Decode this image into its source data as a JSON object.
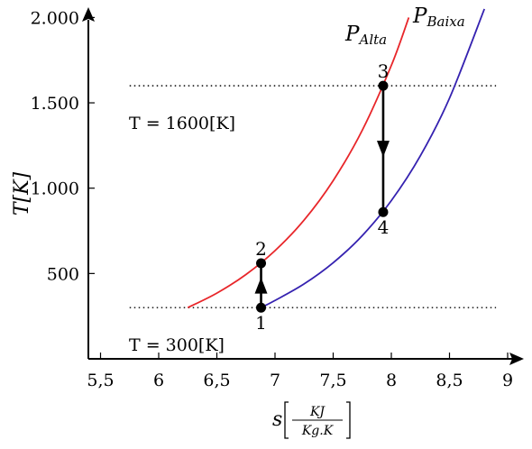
{
  "chart_data": {
    "type": "line",
    "xlabel": "s",
    "xlabel_unit_num": "KJ",
    "xlabel_unit_den": "Kg.K",
    "ylabel": "T[K]",
    "xlim": [
      5.5,
      9
    ],
    "ylim": [
      0,
      2000
    ],
    "x_ticks": [
      {
        "value": 5.5,
        "label": "5,5"
      },
      {
        "value": 6,
        "label": "6"
      },
      {
        "value": 6.5,
        "label": "6,5"
      },
      {
        "value": 7,
        "label": "7"
      },
      {
        "value": 7.5,
        "label": "7,5"
      },
      {
        "value": 8,
        "label": "8"
      },
      {
        "value": 8.5,
        "label": "8,5"
      },
      {
        "value": 9,
        "label": "9"
      }
    ],
    "y_ticks": [
      {
        "value": 500,
        "label": "500"
      },
      {
        "value": 1000,
        "label": "1.000"
      },
      {
        "value": 1500,
        "label": "1.500"
      },
      {
        "value": 2000,
        "label": "2.000"
      }
    ],
    "series": [
      {
        "name_base": "P",
        "name_sub": "Alta",
        "color": "#e8262a",
        "x": [
          6.25,
          6.5,
          6.75,
          7.0,
          7.25,
          7.5,
          7.75,
          8.0,
          8.15
        ],
        "y": [
          300,
          385,
          494,
          634,
          813,
          1044,
          1339,
          1719,
          2000
        ]
      },
      {
        "name_base": "P",
        "name_sub": "Baixa",
        "color": "#3522b0",
        "x": [
          6.88,
          7.0,
          7.25,
          7.5,
          7.75,
          8.0,
          8.25,
          8.5,
          8.8
        ],
        "y": [
          300,
          342,
          439,
          563,
          722,
          927,
          1190,
          1527,
          2050
        ]
      }
    ],
    "isotherms": [
      {
        "T": 1600,
        "label": "T = 1600[K]",
        "x_from": 5.75,
        "x_to": 8.9
      },
      {
        "T": 300,
        "label": "T = 300[K]",
        "x_from": 5.75,
        "x_to": 8.9
      }
    ],
    "points": [
      {
        "id": "1",
        "s": 6.88,
        "T": 300,
        "label_pos": "below"
      },
      {
        "id": "2",
        "s": 6.88,
        "T": 560,
        "label_pos": "above"
      },
      {
        "id": "3",
        "s": 7.93,
        "T": 1600,
        "label_pos": "above"
      },
      {
        "id": "4",
        "s": 7.93,
        "T": 860,
        "label_pos": "below"
      }
    ],
    "processes": [
      {
        "from": "1",
        "to": "2"
      },
      {
        "from": "3",
        "to": "4"
      }
    ]
  }
}
